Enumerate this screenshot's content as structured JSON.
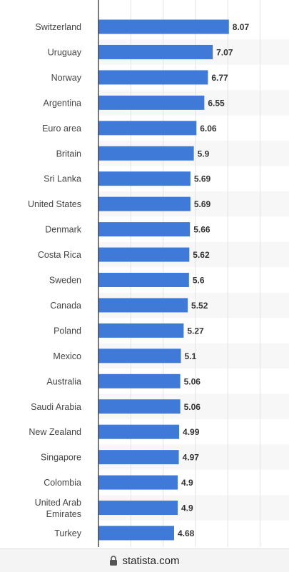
{
  "chart_data": {
    "type": "bar",
    "orientation": "horizontal",
    "categories": [
      "Switzerland",
      "Uruguay",
      "Norway",
      "Argentina",
      "Euro area",
      "Britain",
      "Sri Lanka",
      "United States",
      "Denmark",
      "Costa Rica",
      "Sweden",
      "Canada",
      "Poland",
      "Mexico",
      "Australia",
      "Saudi Arabia",
      "New Zealand",
      "Singapore",
      "Colombia",
      "United Arab Emirates",
      "Turkey"
    ],
    "values": [
      8.07,
      7.07,
      6.77,
      6.55,
      6.06,
      5.9,
      5.69,
      5.69,
      5.66,
      5.62,
      5.6,
      5.52,
      5.27,
      5.1,
      5.06,
      5.06,
      4.99,
      4.97,
      4.9,
      4.9,
      4.68
    ],
    "value_labels": [
      "8.07",
      "7.07",
      "6.77",
      "6.55",
      "6.06",
      "5.9",
      "5.69",
      "5.69",
      "5.66",
      "5.62",
      "5.6",
      "5.52",
      "5.27",
      "5.1",
      "5.06",
      "5.06",
      "4.99",
      "4.97",
      "4.9",
      "4.9",
      "4.68"
    ],
    "xlim": [
      0,
      10
    ],
    "grid": true,
    "bar_color": "#3f7ad8",
    "stripe_color": "#f7f7f7"
  },
  "footer": {
    "domain": "statista.com",
    "icon": "lock-icon"
  }
}
